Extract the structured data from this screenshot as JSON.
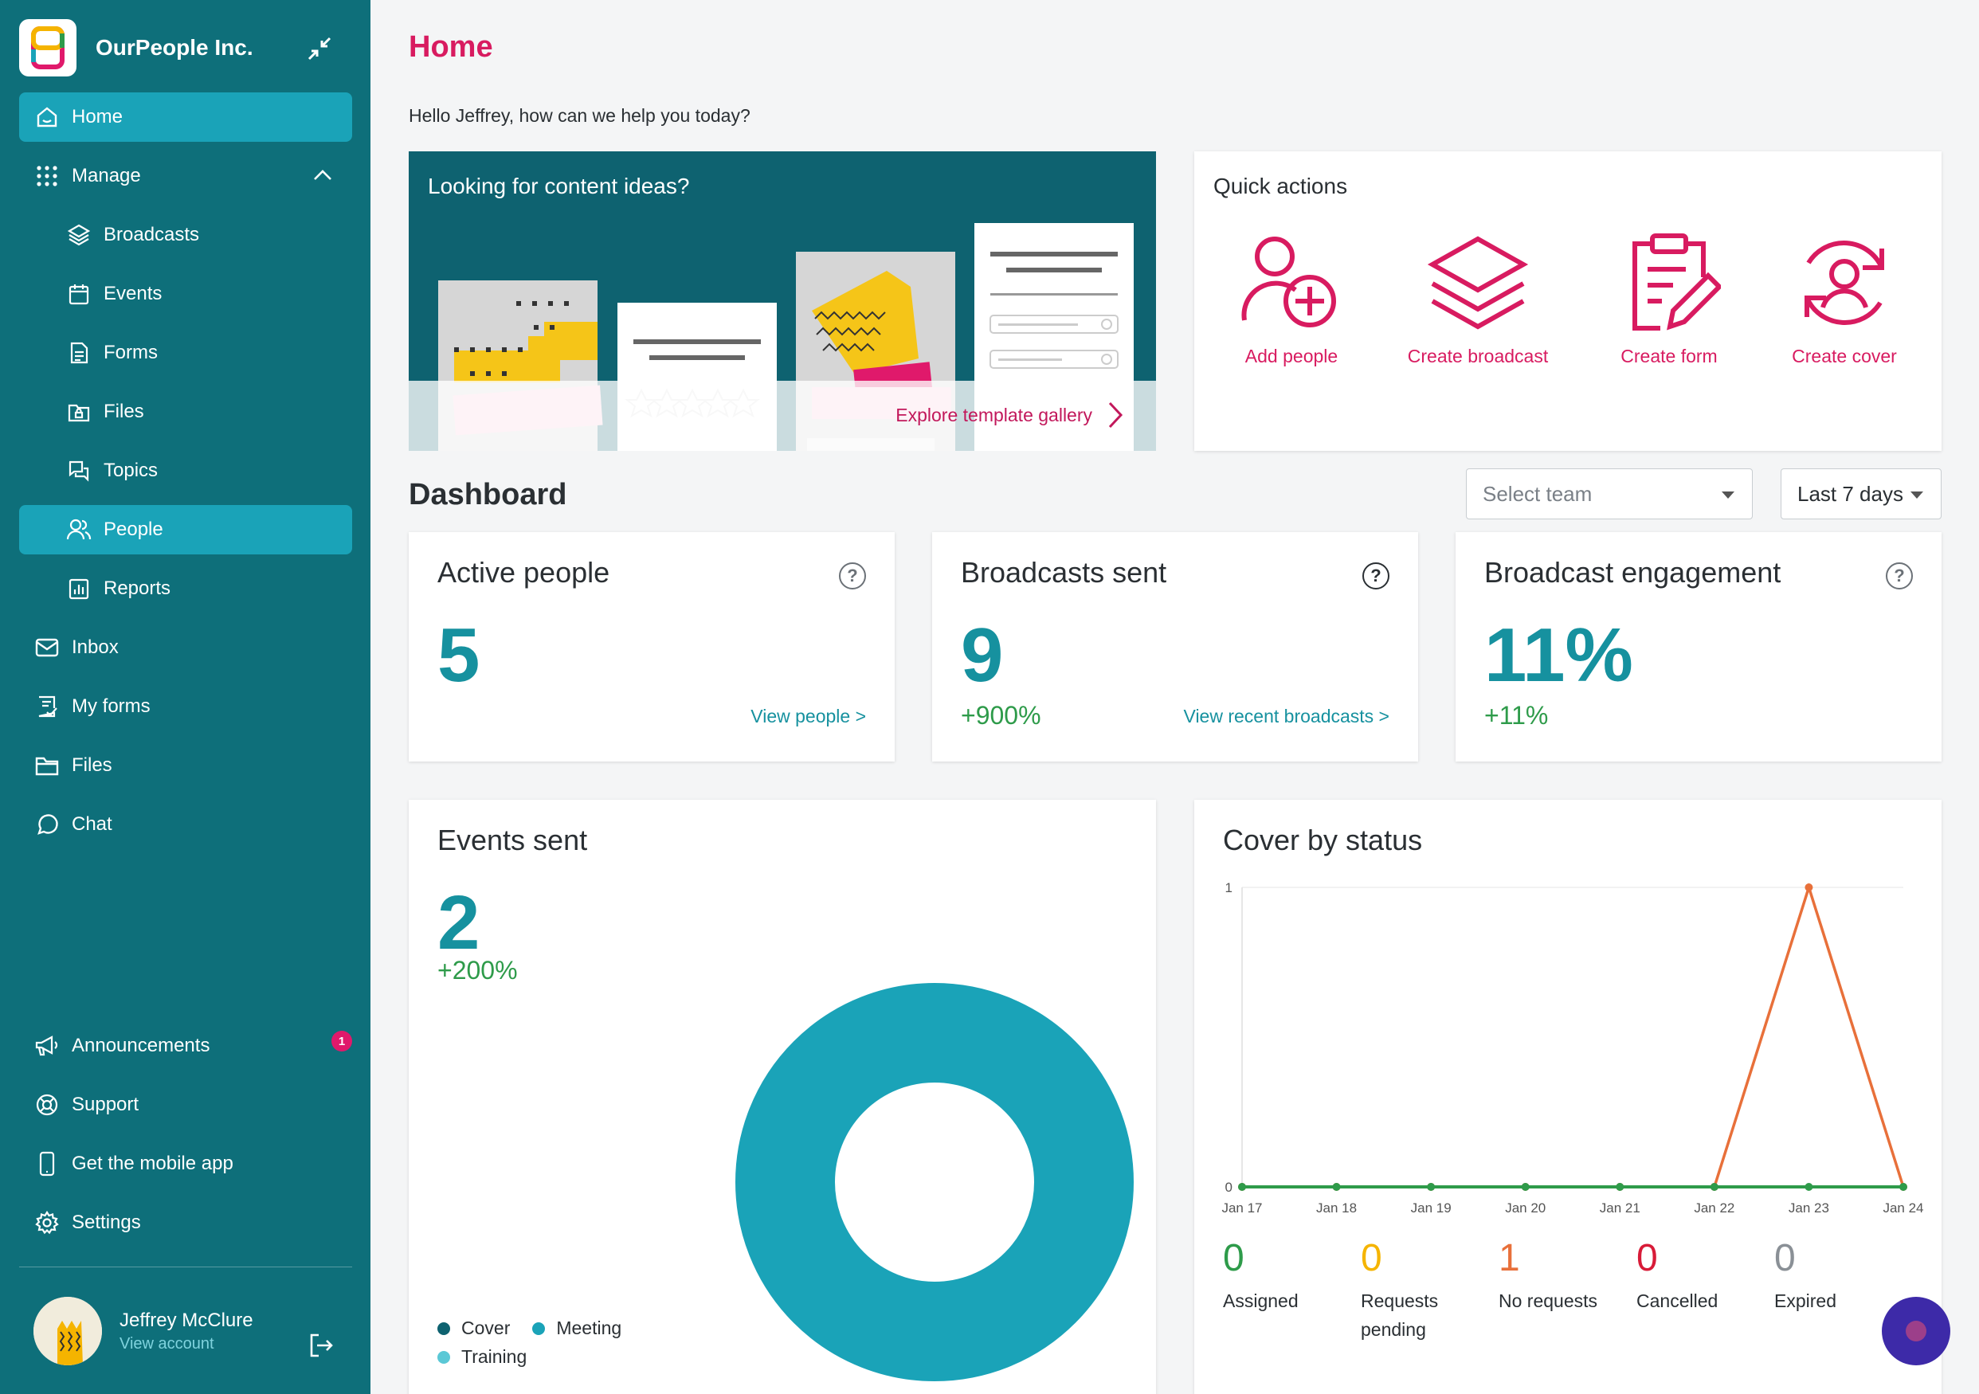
{
  "brand": {
    "name": "OurPeople Inc."
  },
  "sidebar": {
    "items": [
      {
        "label": "Home",
        "icon": "home-icon"
      },
      {
        "label": "Manage",
        "icon": "grid-icon"
      },
      {
        "label": "Broadcasts",
        "icon": "layers-icon"
      },
      {
        "label": "Events",
        "icon": "calendar-icon"
      },
      {
        "label": "Forms",
        "icon": "document-icon"
      },
      {
        "label": "Files",
        "icon": "folder-lock-icon"
      },
      {
        "label": "Topics",
        "icon": "chat-bubbles-icon"
      },
      {
        "label": "People",
        "icon": "people-icon"
      },
      {
        "label": "Reports",
        "icon": "bar-chart-icon"
      },
      {
        "label": "Inbox",
        "icon": "mail-icon"
      },
      {
        "label": "My forms",
        "icon": "form-check-icon"
      },
      {
        "label": "Files",
        "icon": "folder-icon"
      },
      {
        "label": "Chat",
        "icon": "chat-icon"
      }
    ],
    "bottom": [
      {
        "label": "Announcements",
        "icon": "megaphone-icon",
        "badge": "1"
      },
      {
        "label": "Support",
        "icon": "lifebuoy-icon"
      },
      {
        "label": "Get the mobile app",
        "icon": "phone-icon"
      },
      {
        "label": "Settings",
        "icon": "gear-icon"
      }
    ],
    "user": {
      "name": "Jeffrey McClure",
      "sub": "View account"
    }
  },
  "main": {
    "title": "Home",
    "greeting": "Hello Jeffrey, how can we help you today?",
    "ideas": {
      "title": "Looking for content ideas?",
      "link": "Explore template gallery"
    },
    "quick": {
      "title": "Quick actions",
      "actions": [
        {
          "label": "Add people",
          "icon": "add-person-icon"
        },
        {
          "label": "Create broadcast",
          "icon": "layers-icon"
        },
        {
          "label": "Create form",
          "icon": "clipboard-edit-icon"
        },
        {
          "label": "Create cover",
          "icon": "person-refresh-icon"
        }
      ]
    },
    "dashboard": {
      "title": "Dashboard",
      "team_placeholder": "Select team",
      "range": "Last 7 days",
      "cards": [
        {
          "title": "Active people",
          "value": "5",
          "delta": "",
          "link": "View people >"
        },
        {
          "title": "Broadcasts sent",
          "value": "9",
          "delta": "+900%",
          "link": "View recent broadcasts >"
        },
        {
          "title": "Broadcast engagement",
          "value": "11%",
          "delta": "+11%",
          "link": ""
        }
      ],
      "events": {
        "title": "Events sent",
        "value": "2",
        "delta": "+200%",
        "legend": [
          "Cover",
          "Meeting",
          "Training"
        ]
      },
      "cover": {
        "title": "Cover by status",
        "statuses": [
          {
            "value": "0",
            "label": "Assigned",
            "color": "#2e9b4a"
          },
          {
            "value": "0",
            "label": "Requests pending",
            "color": "#f5b400"
          },
          {
            "value": "1",
            "label": "No requests",
            "color": "#e8703a"
          },
          {
            "value": "0",
            "label": "Cancelled",
            "color": "#d81b38"
          },
          {
            "value": "0",
            "label": "Expired",
            "color": "#8a9096"
          }
        ]
      }
    }
  },
  "chart_data": [
    {
      "type": "pie",
      "categories": [
        "Cover",
        "Meeting",
        "Training"
      ],
      "values": [
        0,
        2,
        0
      ],
      "colors": [
        "#0e6270",
        "#1aa3b8",
        "#5bc8d6"
      ]
    },
    {
      "type": "line",
      "x": [
        "Jan 17",
        "Jan 18",
        "Jan 19",
        "Jan 20",
        "Jan 21",
        "Jan 22",
        "Jan 23",
        "Jan 24"
      ],
      "series": [
        {
          "values": [
            0,
            0,
            0,
            0,
            0,
            0,
            1,
            0
          ],
          "color": "#e8703a"
        },
        {
          "values": [
            0,
            0,
            0,
            0,
            0,
            0,
            0,
            0
          ],
          "color": "#2e9b4a"
        }
      ],
      "ylim": [
        0,
        1
      ],
      "yticks": [
        "0",
        "1"
      ]
    }
  ]
}
